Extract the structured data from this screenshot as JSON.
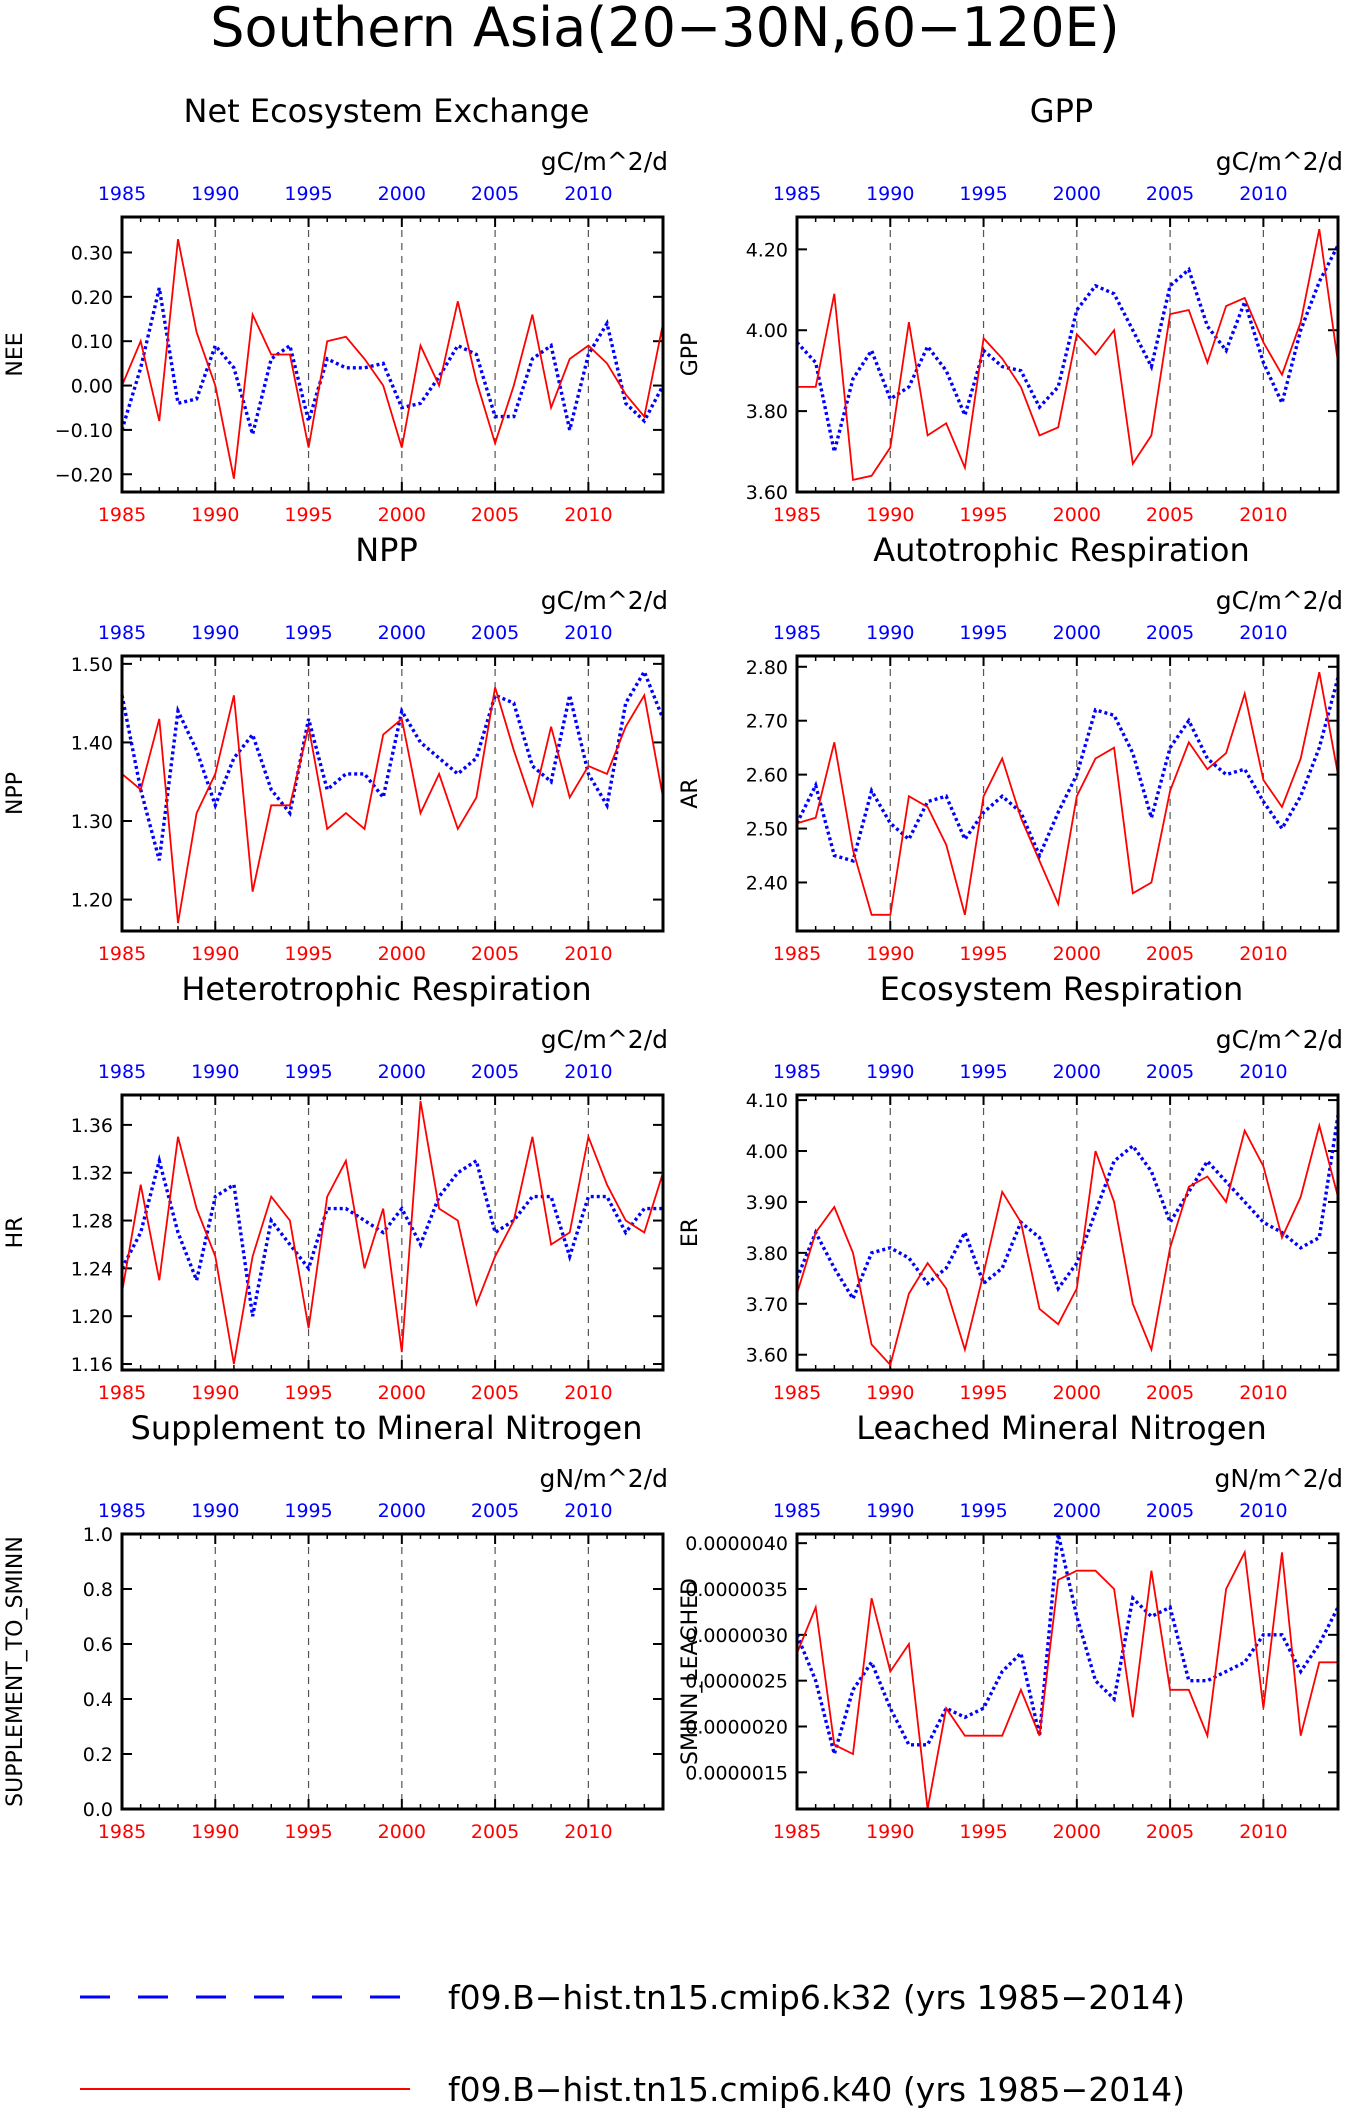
{
  "title": "Southern Asia(20−30N,60−120E)",
  "colors": {
    "model_a": "#0000ff",
    "model_b": "#ff0000",
    "axis": "#000000",
    "grid": "#555555"
  },
  "legend": {
    "placement": "bottom",
    "entries": [
      {
        "label": "f09.B−hist.tn15.cmip6.k32 (yrs 1985−2014)",
        "color": "#0000ff",
        "style": "dashed-dotted"
      },
      {
        "label": "f09.B−hist.tn15.cmip6.k40 (yrs 1985−2014)",
        "color": "#ff0000",
        "style": "solid"
      }
    ]
  },
  "chart_data": [
    {
      "type": "line",
      "title": "Net Ecosystem Exchange",
      "units": "gC/m^2/d",
      "ylabel": "NEE",
      "xlim": [
        1985,
        2014
      ],
      "ylim": [
        -0.24,
        0.38
      ],
      "yticks": [
        -0.2,
        -0.1,
        0.0,
        0.1,
        0.2,
        0.3
      ],
      "ytick_labels": [
        "−0.20",
        "−0.10",
        "0.00",
        "0.10",
        "0.20",
        "0.30"
      ],
      "xticks": [
        1985,
        1990,
        1995,
        2000,
        2005,
        2010
      ],
      "xtick_labels": [
        "1985",
        "1990",
        "1995",
        "2000",
        "2005",
        "2010"
      ],
      "x": [
        1985,
        1986,
        1987,
        1988,
        1989,
        1990,
        1991,
        1992,
        1993,
        1994,
        1995,
        1996,
        1997,
        1998,
        1999,
        2000,
        2001,
        2002,
        2003,
        2004,
        2005,
        2006,
        2007,
        2008,
        2009,
        2010,
        2011,
        2012,
        2013,
        2014
      ],
      "series": [
        {
          "color": "#0000ff",
          "style": "dotted",
          "values": [
            -0.1,
            0.04,
            0.22,
            -0.04,
            -0.03,
            0.09,
            0.04,
            -0.11,
            0.06,
            0.09,
            -0.08,
            0.06,
            0.04,
            0.04,
            0.05,
            -0.05,
            -0.04,
            0.02,
            0.09,
            0.07,
            -0.07,
            -0.07,
            0.06,
            0.09,
            -0.1,
            0.07,
            0.14,
            -0.04,
            -0.08,
            0.0
          ]
        },
        {
          "color": "#ff0000",
          "style": "solid",
          "values": [
            0.0,
            0.1,
            -0.08,
            0.33,
            0.12,
            0.0,
            -0.21,
            0.16,
            0.07,
            0.07,
            -0.14,
            0.1,
            0.11,
            0.06,
            0.0,
            -0.14,
            0.09,
            0.0,
            0.19,
            0.01,
            -0.13,
            0.0,
            0.16,
            -0.05,
            0.06,
            0.09,
            0.05,
            -0.02,
            -0.07,
            0.14
          ]
        }
      ]
    },
    {
      "type": "line",
      "title": "GPP",
      "units": "gC/m^2/d",
      "ylabel": "GPP",
      "xlim": [
        1985,
        2014
      ],
      "ylim": [
        3.6,
        4.28
      ],
      "yticks": [
        3.6,
        3.8,
        4.0,
        4.2
      ],
      "ytick_labels": [
        "3.60",
        "3.80",
        "4.00",
        "4.20"
      ],
      "xticks": [
        1985,
        1990,
        1995,
        2000,
        2005,
        2010
      ],
      "xtick_labels": [
        "1985",
        "1990",
        "1995",
        "2000",
        "2005",
        "2010"
      ],
      "x": [
        1985,
        1986,
        1987,
        1988,
        1989,
        1990,
        1991,
        1992,
        1993,
        1994,
        1995,
        1996,
        1997,
        1998,
        1999,
        2000,
        2001,
        2002,
        2003,
        2004,
        2005,
        2006,
        2007,
        2008,
        2009,
        2010,
        2011,
        2012,
        2013,
        2014
      ],
      "series": [
        {
          "color": "#0000ff",
          "style": "dotted",
          "values": [
            3.97,
            3.92,
            3.7,
            3.88,
            3.95,
            3.83,
            3.86,
            3.96,
            3.9,
            3.79,
            3.95,
            3.91,
            3.9,
            3.81,
            3.86,
            4.05,
            4.11,
            4.09,
            4.0,
            3.91,
            4.11,
            4.15,
            4.01,
            3.95,
            4.07,
            3.92,
            3.82,
            4.0,
            4.12,
            4.21
          ]
        },
        {
          "color": "#ff0000",
          "style": "solid",
          "values": [
            3.86,
            3.86,
            4.09,
            3.63,
            3.64,
            3.71,
            4.02,
            3.74,
            3.77,
            3.66,
            3.98,
            3.93,
            3.86,
            3.74,
            3.76,
            3.99,
            3.94,
            4.0,
            3.67,
            3.74,
            4.04,
            4.05,
            3.92,
            4.06,
            4.08,
            3.97,
            3.89,
            4.02,
            4.25,
            3.92
          ]
        }
      ]
    },
    {
      "type": "line",
      "title": "NPP",
      "units": "gC/m^2/d",
      "ylabel": "NPP",
      "xlim": [
        1985,
        2014
      ],
      "ylim": [
        1.16,
        1.51
      ],
      "yticks": [
        1.2,
        1.3,
        1.4,
        1.5
      ],
      "ytick_labels": [
        "1.20",
        "1.30",
        "1.40",
        "1.50"
      ],
      "xticks": [
        1985,
        1990,
        1995,
        2000,
        2005,
        2010
      ],
      "xtick_labels": [
        "1985",
        "1990",
        "1995",
        "2000",
        "2005",
        "2010"
      ],
      "x": [
        1985,
        1986,
        1987,
        1988,
        1989,
        1990,
        1991,
        1992,
        1993,
        1994,
        1995,
        1996,
        1997,
        1998,
        1999,
        2000,
        2001,
        2002,
        2003,
        2004,
        2005,
        2006,
        2007,
        2008,
        2009,
        2010,
        2011,
        2012,
        2013,
        2014
      ],
      "series": [
        {
          "color": "#0000ff",
          "style": "dotted",
          "values": [
            1.46,
            1.34,
            1.25,
            1.44,
            1.39,
            1.32,
            1.38,
            1.41,
            1.34,
            1.31,
            1.43,
            1.34,
            1.36,
            1.36,
            1.33,
            1.44,
            1.4,
            1.38,
            1.36,
            1.38,
            1.46,
            1.45,
            1.37,
            1.35,
            1.46,
            1.36,
            1.32,
            1.45,
            1.49,
            1.43
          ]
        },
        {
          "color": "#ff0000",
          "style": "solid",
          "values": [
            1.36,
            1.34,
            1.43,
            1.17,
            1.31,
            1.36,
            1.46,
            1.21,
            1.32,
            1.32,
            1.42,
            1.29,
            1.31,
            1.29,
            1.41,
            1.43,
            1.31,
            1.36,
            1.29,
            1.33,
            1.47,
            1.39,
            1.32,
            1.42,
            1.33,
            1.37,
            1.36,
            1.42,
            1.46,
            1.33
          ]
        }
      ]
    },
    {
      "type": "line",
      "title": "Autotrophic Respiration",
      "units": "gC/m^2/d",
      "ylabel": "AR",
      "xlim": [
        1985,
        2014
      ],
      "ylim": [
        2.31,
        2.82
      ],
      "yticks": [
        2.4,
        2.5,
        2.6,
        2.7,
        2.8
      ],
      "ytick_labels": [
        "2.40",
        "2.50",
        "2.60",
        "2.70",
        "2.80"
      ],
      "xticks": [
        1985,
        1990,
        1995,
        2000,
        2005,
        2010
      ],
      "xtick_labels": [
        "1985",
        "1990",
        "1995",
        "2000",
        "2005",
        "2010"
      ],
      "x": [
        1985,
        1986,
        1987,
        1988,
        1989,
        1990,
        1991,
        1992,
        1993,
        1994,
        1995,
        1996,
        1997,
        1998,
        1999,
        2000,
        2001,
        2002,
        2003,
        2004,
        2005,
        2006,
        2007,
        2008,
        2009,
        2010,
        2011,
        2012,
        2013,
        2014
      ],
      "series": [
        {
          "color": "#0000ff",
          "style": "dotted",
          "values": [
            2.51,
            2.58,
            2.45,
            2.44,
            2.57,
            2.51,
            2.48,
            2.55,
            2.56,
            2.48,
            2.53,
            2.56,
            2.53,
            2.45,
            2.53,
            2.6,
            2.72,
            2.71,
            2.64,
            2.52,
            2.65,
            2.7,
            2.63,
            2.6,
            2.61,
            2.55,
            2.5,
            2.56,
            2.65,
            2.78
          ]
        },
        {
          "color": "#ff0000",
          "style": "solid",
          "values": [
            2.51,
            2.52,
            2.66,
            2.46,
            2.34,
            2.34,
            2.56,
            2.54,
            2.47,
            2.34,
            2.56,
            2.63,
            2.52,
            2.44,
            2.36,
            2.56,
            2.63,
            2.65,
            2.38,
            2.4,
            2.57,
            2.66,
            2.61,
            2.64,
            2.75,
            2.59,
            2.54,
            2.63,
            2.79,
            2.6
          ]
        }
      ]
    },
    {
      "type": "line",
      "title": "Heterotrophic Respiration",
      "units": "gC/m^2/d",
      "ylabel": "HR",
      "xlim": [
        1985,
        2014
      ],
      "ylim": [
        1.155,
        1.385
      ],
      "yticks": [
        1.16,
        1.2,
        1.24,
        1.28,
        1.32,
        1.36
      ],
      "ytick_labels": [
        "1.16",
        "1.20",
        "1.24",
        "1.28",
        "1.32",
        "1.36"
      ],
      "xticks": [
        1985,
        1990,
        1995,
        2000,
        2005,
        2010
      ],
      "xtick_labels": [
        "1985",
        "1990",
        "1995",
        "2000",
        "2005",
        "2010"
      ],
      "x": [
        1985,
        1986,
        1987,
        1988,
        1989,
        1990,
        1991,
        1992,
        1993,
        1994,
        1995,
        1996,
        1997,
        1998,
        1999,
        2000,
        2001,
        2002,
        2003,
        2004,
        2005,
        2006,
        2007,
        2008,
        2009,
        2010,
        2011,
        2012,
        2013,
        2014
      ],
      "series": [
        {
          "color": "#0000ff",
          "style": "dotted",
          "values": [
            1.24,
            1.27,
            1.33,
            1.27,
            1.23,
            1.3,
            1.31,
            1.2,
            1.28,
            1.26,
            1.24,
            1.29,
            1.29,
            1.28,
            1.27,
            1.29,
            1.26,
            1.3,
            1.32,
            1.33,
            1.27,
            1.28,
            1.3,
            1.3,
            1.25,
            1.3,
            1.3,
            1.27,
            1.29,
            1.29
          ]
        },
        {
          "color": "#ff0000",
          "style": "solid",
          "values": [
            1.22,
            1.31,
            1.23,
            1.35,
            1.29,
            1.25,
            1.16,
            1.25,
            1.3,
            1.28,
            1.19,
            1.3,
            1.33,
            1.24,
            1.29,
            1.17,
            1.38,
            1.29,
            1.28,
            1.21,
            1.25,
            1.28,
            1.35,
            1.26,
            1.27,
            1.35,
            1.31,
            1.28,
            1.27,
            1.32
          ]
        }
      ]
    },
    {
      "type": "line",
      "title": "Ecosystem Respiration",
      "units": "gC/m^2/d",
      "ylabel": "ER",
      "xlim": [
        1985,
        2014
      ],
      "ylim": [
        3.57,
        4.11
      ],
      "yticks": [
        3.6,
        3.7,
        3.8,
        3.9,
        4.0,
        4.1
      ],
      "ytick_labels": [
        "3.60",
        "3.70",
        "3.80",
        "3.90",
        "4.00",
        "4.10"
      ],
      "xticks": [
        1985,
        1990,
        1995,
        2000,
        2005,
        2010
      ],
      "xtick_labels": [
        "1985",
        "1990",
        "1995",
        "2000",
        "2005",
        "2010"
      ],
      "x": [
        1985,
        1986,
        1987,
        1988,
        1989,
        1990,
        1991,
        1992,
        1993,
        1994,
        1995,
        1996,
        1997,
        1998,
        1999,
        2000,
        2001,
        2002,
        2003,
        2004,
        2005,
        2006,
        2007,
        2008,
        2009,
        2010,
        2011,
        2012,
        2013,
        2014
      ],
      "series": [
        {
          "color": "#0000ff",
          "style": "dotted",
          "values": [
            3.75,
            3.84,
            3.77,
            3.71,
            3.8,
            3.81,
            3.79,
            3.74,
            3.77,
            3.84,
            3.74,
            3.77,
            3.86,
            3.83,
            3.73,
            3.78,
            3.88,
            3.98,
            4.01,
            3.96,
            3.86,
            3.92,
            3.98,
            3.94,
            3.9,
            3.86,
            3.84,
            3.81,
            3.83,
            4.07
          ]
        },
        {
          "color": "#ff0000",
          "style": "solid",
          "values": [
            3.72,
            3.84,
            3.89,
            3.8,
            3.62,
            3.58,
            3.72,
            3.78,
            3.73,
            3.61,
            3.76,
            3.92,
            3.86,
            3.69,
            3.66,
            3.73,
            4.0,
            3.9,
            3.7,
            3.61,
            3.81,
            3.93,
            3.95,
            3.9,
            4.04,
            3.97,
            3.83,
            3.91,
            4.05,
            3.91
          ]
        }
      ]
    },
    {
      "type": "line",
      "title": "Supplement to Mineral Nitrogen",
      "units": "gN/m^2/d",
      "ylabel": "SUPPLEMENT_TO_SMINN",
      "xlim": [
        1985,
        2014
      ],
      "ylim": [
        0.0,
        1.0
      ],
      "yticks": [
        0.0,
        0.2,
        0.4,
        0.6,
        0.8,
        1.0
      ],
      "ytick_labels": [
        "0.0",
        "0.2",
        "0.4",
        "0.6",
        "0.8",
        "1.0"
      ],
      "xticks": [
        1985,
        1990,
        1995,
        2000,
        2005,
        2010
      ],
      "xtick_labels": [
        "1985",
        "1990",
        "1995",
        "2000",
        "2005",
        "2010"
      ],
      "x": [],
      "series": []
    },
    {
      "type": "line",
      "title": "Leached Mineral Nitrogen",
      "units": "gN/m^2/d",
      "ylabel": "SMINN_LEACHED",
      "xlim": [
        1985,
        2014
      ],
      "ylim": [
        1.1e-06,
        4.1e-06
      ],
      "yticks": [
        1.5e-06,
        2e-06,
        2.5e-06,
        3e-06,
        3.5e-06,
        4e-06
      ],
      "ytick_labels": [
        "0.0000015",
        "0.0000020",
        "0.0000025",
        "0.0000030",
        "0.0000035",
        "0.0000040"
      ],
      "xticks": [
        1985,
        1990,
        1995,
        2000,
        2005,
        2010
      ],
      "xtick_labels": [
        "1985",
        "1990",
        "1995",
        "2000",
        "2005",
        "2010"
      ],
      "x": [
        1985,
        1986,
        1987,
        1988,
        1989,
        1990,
        1991,
        1992,
        1993,
        1994,
        1995,
        1996,
        1997,
        1998,
        1999,
        2000,
        2001,
        2002,
        2003,
        2004,
        2005,
        2006,
        2007,
        2008,
        2009,
        2010,
        2011,
        2012,
        2013,
        2014
      ],
      "series": [
        {
          "color": "#0000ff",
          "style": "dotted",
          "values": [
            3e-06,
            2.5e-06,
            1.7e-06,
            2.4e-06,
            2.7e-06,
            2.2e-06,
            1.8e-06,
            1.8e-06,
            2.2e-06,
            2.1e-06,
            2.2e-06,
            2.6e-06,
            2.8e-06,
            1.9e-06,
            4.1e-06,
            3.2e-06,
            2.5e-06,
            2.3e-06,
            3.4e-06,
            3.2e-06,
            3.3e-06,
            2.5e-06,
            2.5e-06,
            2.6e-06,
            2.7e-06,
            3e-06,
            3e-06,
            2.6e-06,
            2.9e-06,
            3.3e-06
          ]
        },
        {
          "color": "#ff0000",
          "style": "solid",
          "values": [
            2.8e-06,
            3.3e-06,
            1.8e-06,
            1.7e-06,
            3.4e-06,
            2.6e-06,
            2.9e-06,
            1.1e-06,
            2.2e-06,
            1.9e-06,
            1.9e-06,
            1.9e-06,
            2.4e-06,
            1.9e-06,
            3.6e-06,
            3.7e-06,
            3.7e-06,
            3.5e-06,
            2.1e-06,
            3.7e-06,
            2.4e-06,
            2.4e-06,
            1.9e-06,
            3.5e-06,
            3.9e-06,
            2.2e-06,
            3.9e-06,
            1.9e-06,
            2.7e-06,
            2.7e-06
          ]
        }
      ]
    }
  ]
}
